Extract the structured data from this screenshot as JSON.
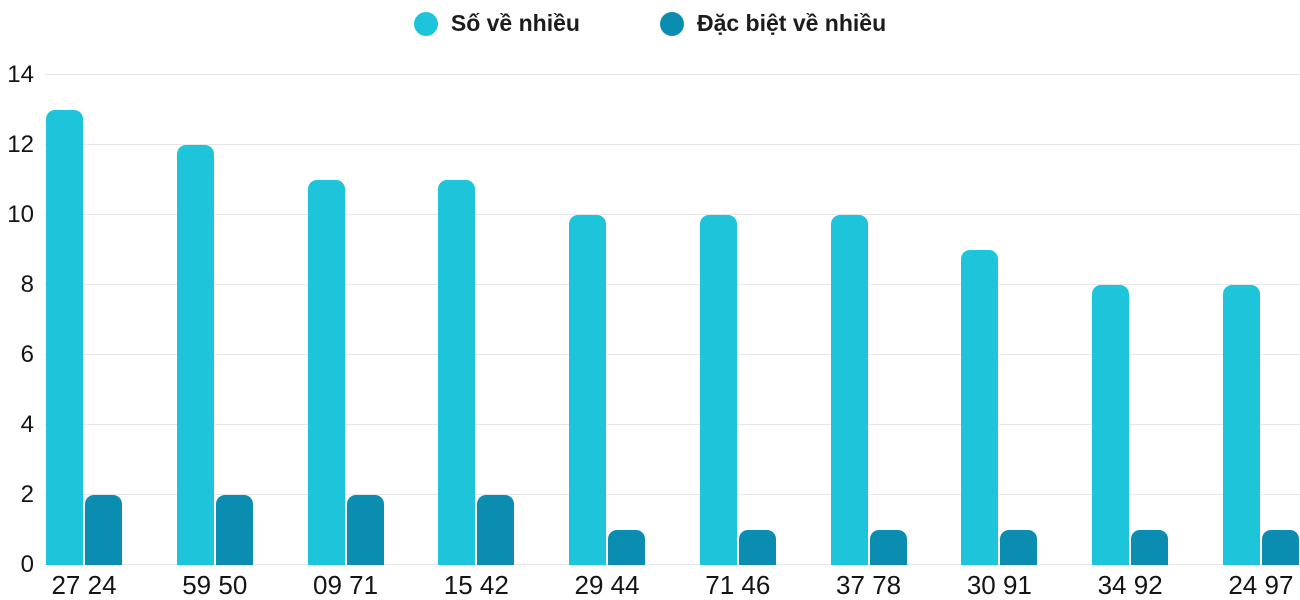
{
  "chart_data": {
    "type": "bar",
    "title": "",
    "xlabel": "",
    "ylabel": "",
    "categories": [
      "27 24",
      "59 50",
      "09 71",
      "15 42",
      "29 44",
      "71 46",
      "37 78",
      "30 91",
      "34 92",
      "24 97"
    ],
    "series": [
      {
        "name": "Số về nhiều",
        "color": "#1EC5DA",
        "values": [
          13,
          12,
          11,
          11,
          10,
          10,
          10,
          9,
          8,
          8
        ]
      },
      {
        "name": "Đặc biệt về nhiều",
        "color": "#0B8DB1",
        "values": [
          2,
          2,
          2,
          2,
          1,
          1,
          1,
          1,
          1,
          1
        ]
      }
    ],
    "ylim": [
      0,
      14
    ],
    "yticks": [
      0,
      2,
      4,
      6,
      8,
      10,
      12,
      14
    ],
    "grid": true,
    "legend_position": "top"
  },
  "colors": {
    "background": "#ffffff",
    "gridline": "#e7e7e7",
    "axis_text": "#141414",
    "legend_text": "#1c1c1c"
  }
}
